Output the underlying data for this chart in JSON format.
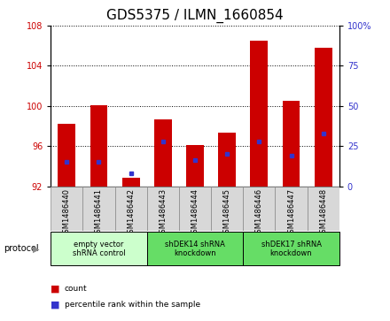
{
  "title": "GDS5375 / ILMN_1660854",
  "samples": [
    "GSM1486440",
    "GSM1486441",
    "GSM1486442",
    "GSM1486443",
    "GSM1486444",
    "GSM1486445",
    "GSM1486446",
    "GSM1486447",
    "GSM1486448"
  ],
  "count_values": [
    98.2,
    100.05,
    92.8,
    98.7,
    96.1,
    97.3,
    106.5,
    100.5,
    105.8
  ],
  "percentile_values": [
    15,
    15,
    8,
    28,
    16,
    20,
    28,
    19,
    33
  ],
  "bar_bottom": 92,
  "ylim_left": [
    92,
    108
  ],
  "ylim_right": [
    0,
    100
  ],
  "yticks_left": [
    92,
    96,
    100,
    104,
    108
  ],
  "yticks_right": [
    0,
    25,
    50,
    75,
    100
  ],
  "bar_color": "#cc0000",
  "dot_color": "#3333cc",
  "bar_width": 0.55,
  "protocol_groups": [
    {
      "start": 0,
      "end": 2,
      "label": "empty vector\nshRNA control",
      "color": "#ccffcc"
    },
    {
      "start": 3,
      "end": 5,
      "label": "shDEK14 shRNA\nknockdown",
      "color": "#66dd66"
    },
    {
      "start": 6,
      "end": 8,
      "label": "shDEK17 shRNA\nknockdown",
      "color": "#66dd66"
    }
  ],
  "legend_count_label": "count",
  "legend_percentile_label": "percentile rank within the sample",
  "protocol_label": "protocol",
  "title_fontsize": 11,
  "tick_fontsize": 7,
  "label_fontsize": 7,
  "sample_box_color": "#d8d8d8",
  "sample_box_edge": "#888888"
}
